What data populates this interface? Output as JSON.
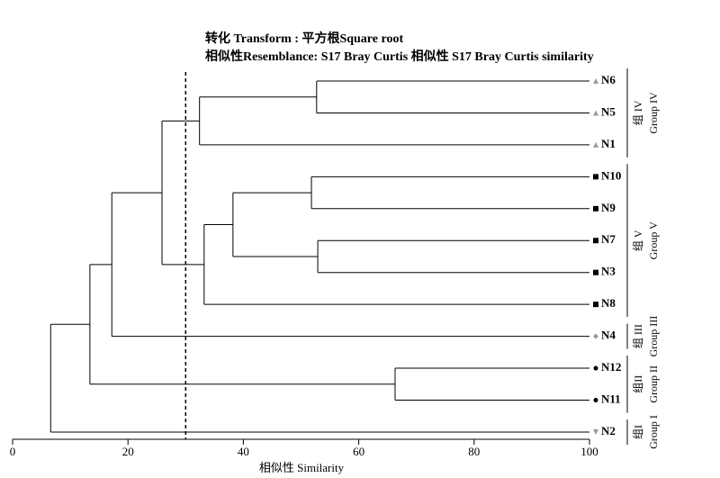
{
  "chart_data": {
    "type": "dendrogram",
    "title": "转化 Transform : 平方根Square root",
    "subtitle": "相似性Resemblance: S17 Bray Curtis 相似性 S17 Bray Curtis similarity",
    "x_label": "相似性 Similarity",
    "xlim": [
      0,
      100
    ],
    "xticks": [
      0,
      20,
      40,
      60,
      80,
      100
    ],
    "cutoff": 30,
    "line_color": "#000000",
    "tree": {
      "similarity": 6.6,
      "children": [
        {
          "similarity": 13.4,
          "children": [
            {
              "similarity": 17.2,
              "children": [
                {
                  "similarity": 25.9,
                  "children": [
                    {
                      "similarity": 32.4,
                      "children": [
                        {
                          "similarity": 52.7,
                          "children": [
                            {
                              "name": "N6",
                              "marker": "triangle-up",
                              "color": "#999999"
                            },
                            {
                              "name": "N5",
                              "marker": "triangle-up",
                              "color": "#999999"
                            }
                          ]
                        },
                        {
                          "name": "N1",
                          "marker": "triangle-up",
                          "color": "#999999"
                        }
                      ]
                    },
                    {
                      "similarity": 33.2,
                      "children": [
                        {
                          "similarity": 38.2,
                          "children": [
                            {
                              "similarity": 51.8,
                              "children": [
                                {
                                  "name": "N10",
                                  "marker": "square",
                                  "color": "#000000"
                                },
                                {
                                  "name": "N9",
                                  "marker": "square",
                                  "color": "#000000"
                                }
                              ]
                            },
                            {
                              "similarity": 52.9,
                              "children": [
                                {
                                  "name": "N7",
                                  "marker": "square",
                                  "color": "#000000"
                                },
                                {
                                  "name": "N3",
                                  "marker": "square",
                                  "color": "#000000"
                                }
                              ]
                            }
                          ]
                        },
                        {
                          "name": "N8",
                          "marker": "square",
                          "color": "#000000"
                        }
                      ]
                    }
                  ]
                },
                {
                  "name": "N4",
                  "marker": "diamond",
                  "color": "#999999"
                }
              ]
            },
            {
              "similarity": 66.3,
              "children": [
                {
                  "name": "N12",
                  "marker": "circle",
                  "color": "#000000"
                },
                {
                  "name": "N11",
                  "marker": "circle",
                  "color": "#000000"
                }
              ]
            }
          ]
        },
        {
          "name": "N2",
          "marker": "triangle-down",
          "color": "#999999"
        }
      ]
    },
    "groups": [
      {
        "name_cn": "组 IV",
        "name_en": "Group IV",
        "size": 3
      },
      {
        "name_cn": "组 V",
        "name_en": "Group V",
        "size": 5
      },
      {
        "name_cn": "组 III",
        "name_en": "Group III",
        "size": 1
      },
      {
        "name_cn": "组II",
        "name_en": "Group II",
        "size": 2
      },
      {
        "name_cn": "组I",
        "name_en": "Group I",
        "size": 1
      }
    ]
  }
}
